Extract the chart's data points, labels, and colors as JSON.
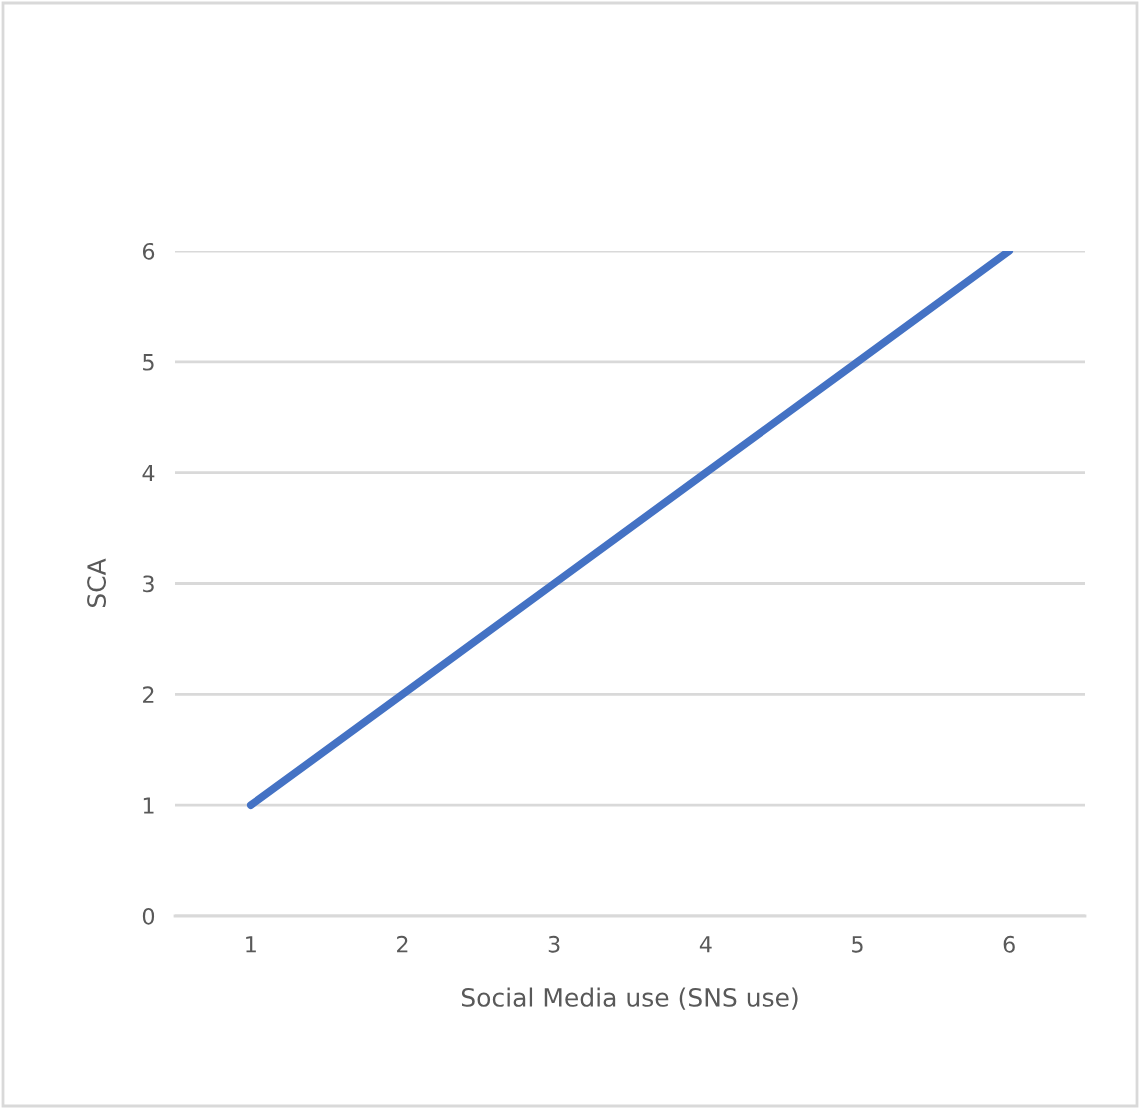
{
  "chart_data": {
    "type": "line",
    "xlabel": "Social Media use (SNS use)",
    "ylabel": "SCA",
    "categories": [
      "1",
      "2",
      "3",
      "4",
      "5",
      "6"
    ],
    "series": [
      {
        "color": "#4472c4",
        "values": [
          1,
          2,
          3,
          4,
          5,
          6
        ]
      }
    ],
    "ylim": [
      0,
      6
    ],
    "yticks": [
      0,
      1,
      2,
      3,
      4,
      5,
      6
    ],
    "grid": "y",
    "legend": false,
    "marker": "none",
    "line_style": "solid"
  }
}
